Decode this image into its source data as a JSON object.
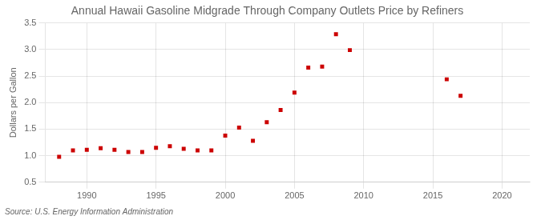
{
  "chart_data": {
    "type": "scatter",
    "title": "Annual Hawaii Gasoline Midgrade Through Company Outlets Price by Refiners",
    "ylabel": "Dollars per Gallon",
    "source": "Source: U.S. Energy Information Administration",
    "x": [
      1988,
      1989,
      1990,
      1991,
      1992,
      1993,
      1994,
      1995,
      1996,
      1997,
      1998,
      1999,
      2000,
      2001,
      2002,
      2003,
      2004,
      2005,
      2006,
      2007,
      2008,
      2009,
      2016,
      2017
    ],
    "values": [
      0.98,
      1.1,
      1.11,
      1.14,
      1.11,
      1.07,
      1.07,
      1.15,
      1.18,
      1.13,
      1.1,
      1.1,
      1.38,
      1.53,
      1.28,
      1.63,
      1.86,
      2.19,
      2.66,
      2.68,
      3.29,
      2.99,
      2.44,
      2.13
    ],
    "color": "#cc0000",
    "marker": "square",
    "xlim": [
      1987,
      2022
    ],
    "xticks": [
      1990,
      1995,
      2000,
      2005,
      2010,
      2015,
      2020
    ],
    "ylim": [
      0.5,
      3.5
    ],
    "yticks": [
      0.5,
      {
        "value": 1.0,
        "label": "1.0"
      },
      1.5,
      {
        "value": 2.0,
        "label": "2.0"
      },
      2.5,
      {
        "value": 3.0,
        "label": "3.0"
      },
      3.5
    ],
    "grid": true
  }
}
